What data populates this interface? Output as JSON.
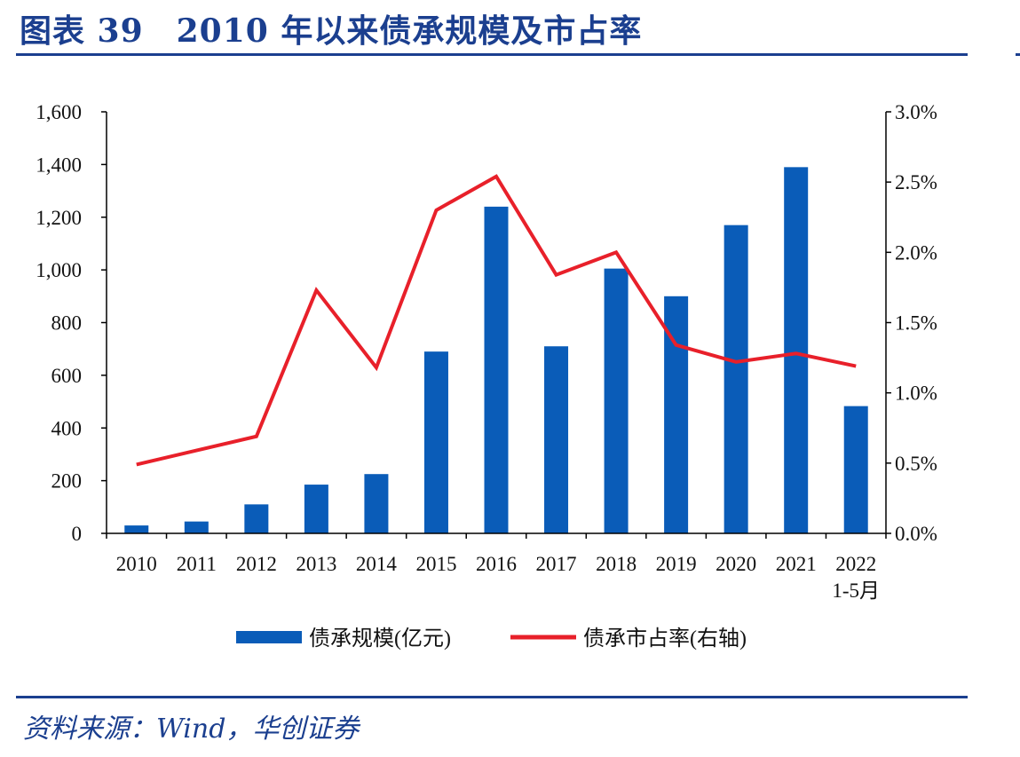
{
  "figure": {
    "title": "图表 39　2010 年以来债承规模及市占率",
    "source": "资料来源：Wind，华创证券"
  },
  "chart_data": {
    "type": "bar",
    "categories": [
      "2010",
      "2011",
      "2012",
      "2013",
      "2014",
      "2015",
      "2016",
      "2017",
      "2018",
      "2019",
      "2020",
      "2021",
      "2022\n1-5月"
    ],
    "series": [
      {
        "name": "债承规模(亿元)",
        "type": "bar",
        "axis": "left",
        "color": "#0a5cb8",
        "values": [
          30,
          45,
          110,
          185,
          225,
          690,
          1240,
          710,
          1005,
          900,
          1170,
          1390,
          483
        ]
      },
      {
        "name": "债承市占率(右轴)",
        "type": "line",
        "axis": "right",
        "color": "#e8202a",
        "values": [
          0.49,
          0.59,
          0.69,
          1.73,
          1.18,
          2.3,
          2.54,
          1.84,
          2.0,
          1.34,
          1.22,
          1.28,
          1.19
        ]
      }
    ],
    "y_left": {
      "range": [
        0,
        1600
      ],
      "ticks": [
        0,
        200,
        400,
        600,
        800,
        1000,
        1200,
        1400,
        1600
      ],
      "tick_labels": [
        "0",
        "200",
        "400",
        "600",
        "800",
        "1,000",
        "1,200",
        "1,400",
        "1,600"
      ]
    },
    "y_right": {
      "range": [
        0,
        3.0
      ],
      "ticks": [
        0,
        0.5,
        1.0,
        1.5,
        2.0,
        2.5,
        3.0
      ],
      "tick_labels": [
        "0.0%",
        "0.5%",
        "1.0%",
        "1.5%",
        "2.0%",
        "2.5%",
        "3.0%"
      ]
    },
    "grid": false,
    "legend": "bottom-center"
  }
}
